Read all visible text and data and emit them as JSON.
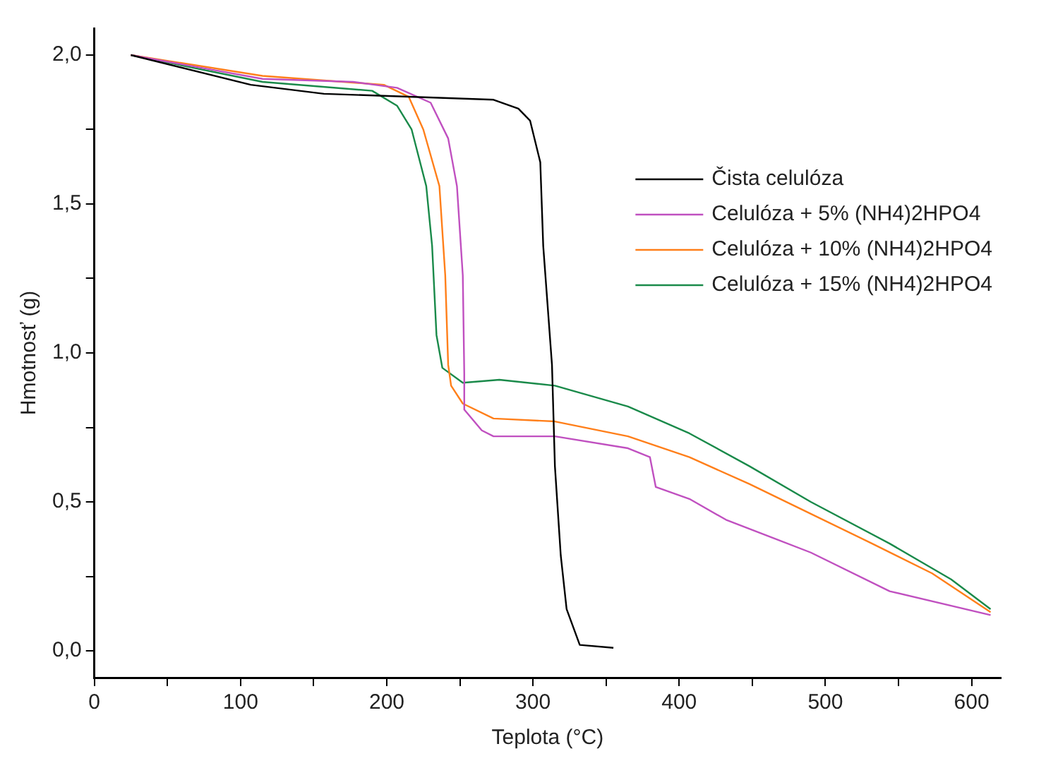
{
  "chart_data": {
    "type": "line",
    "xlabel": "Teplota (°C)",
    "ylabel": "Hmotnosť (g)",
    "xlim": [
      0,
      620
    ],
    "ylim": [
      -0.09,
      2.09
    ],
    "xticks": [
      0,
      {
        "value": 50,
        "label": null
      },
      100,
      {
        "value": 150,
        "label": null
      },
      200,
      {
        "value": 250,
        "label": null
      },
      300,
      {
        "value": 350,
        "label": null
      },
      400,
      {
        "value": 450,
        "label": null
      },
      500,
      {
        "value": 550,
        "label": null
      },
      600
    ],
    "yticks": [
      {
        "value": 0,
        "label": "0,0"
      },
      {
        "value": 0.25,
        "label": null
      },
      {
        "value": 0.5,
        "label": "0,5"
      },
      {
        "value": 0.75,
        "label": null
      },
      {
        "value": 1,
        "label": "1,0"
      },
      {
        "value": 1.25,
        "label": null
      },
      {
        "value": 1.5,
        "label": "1,5"
      },
      {
        "value": 1.75,
        "label": null
      },
      {
        "value": 2,
        "label": "2,0"
      }
    ],
    "grid": false,
    "legend": "right",
    "marker": "none",
    "line_style": "solid",
    "series": [
      {
        "name": "Čista celulóza",
        "color": "#000000",
        "x": [
          25,
          107,
          157,
          273,
          290,
          298,
          305,
          307,
          313,
          315,
          319,
          323,
          332,
          355
        ],
        "values": [
          2.0,
          1.9,
          1.87,
          1.85,
          1.82,
          1.78,
          1.64,
          1.36,
          0.96,
          0.62,
          0.32,
          0.14,
          0.02,
          0.01
        ]
      },
      {
        "name": "Celulóza + 5% (NH4)2HPO4",
        "color": "#c050c0",
        "x": [
          25,
          115,
          177,
          207,
          230,
          242,
          248,
          252,
          253,
          253,
          265,
          273,
          315,
          365,
          380,
          384,
          407,
          432,
          490,
          544,
          613
        ],
        "values": [
          2.0,
          1.92,
          1.91,
          1.89,
          1.84,
          1.72,
          1.56,
          1.26,
          0.93,
          0.81,
          0.74,
          0.72,
          0.72,
          0.68,
          0.65,
          0.55,
          0.51,
          0.44,
          0.33,
          0.2,
          0.12
        ]
      },
      {
        "name": "Celulóza + 10% (NH4)2HPO4",
        "color": "#ff7f1a",
        "x": [
          25,
          115,
          198,
          215,
          225,
          236,
          240,
          242,
          244,
          252,
          273,
          315,
          365,
          407,
          448,
          490,
          532,
          573,
          613
        ],
        "values": [
          2.0,
          1.93,
          1.9,
          1.86,
          1.75,
          1.56,
          1.26,
          0.96,
          0.89,
          0.83,
          0.78,
          0.77,
          0.72,
          0.65,
          0.56,
          0.46,
          0.36,
          0.26,
          0.13
        ]
      },
      {
        "name": "Celulóza + 15% (NH4)2HPO4",
        "color": "#1a8a4a",
        "x": [
          25,
          115,
          190,
          207,
          217,
          227,
          231,
          234,
          238,
          252,
          277,
          315,
          365,
          407,
          448,
          490,
          544,
          586,
          613
        ],
        "values": [
          2.0,
          1.91,
          1.88,
          1.83,
          1.75,
          1.56,
          1.36,
          1.06,
          0.95,
          0.9,
          0.91,
          0.89,
          0.82,
          0.73,
          0.62,
          0.5,
          0.36,
          0.24,
          0.14
        ]
      }
    ]
  }
}
